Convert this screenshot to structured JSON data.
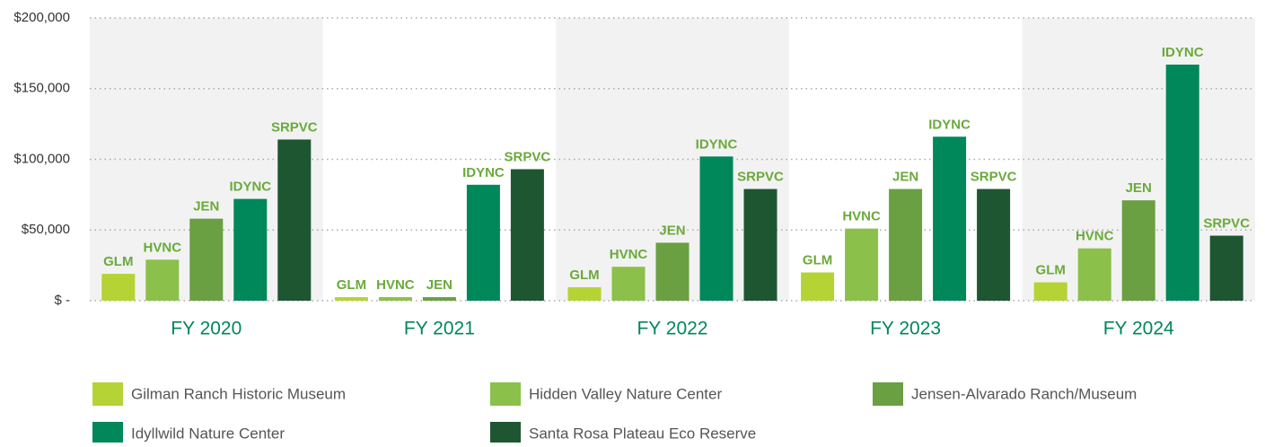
{
  "chart_data": {
    "type": "bar",
    "categories": [
      "FY 2020",
      "FY 2021",
      "FY 2022",
      "FY 2023",
      "FY 2024"
    ],
    "series": [
      {
        "name": "Gilman Ranch Historic Museum",
        "label": "GLM",
        "color": "#b5d334",
        "values": [
          19000,
          2500,
          9500,
          20000,
          13000
        ]
      },
      {
        "name": "Hidden Valley Nature Center",
        "label": "HVNC",
        "color": "#8bc04a",
        "values": [
          29000,
          2500,
          24000,
          51000,
          37000
        ]
      },
      {
        "name": "Jensen-Alvarado Ranch/Museum",
        "label": "JEN",
        "color": "#6a9f42",
        "values": [
          58000,
          2500,
          41000,
          79000,
          71000
        ]
      },
      {
        "name": "Idyllwild Nature Center",
        "label": "IDYNC",
        "color": "#00875a",
        "values": [
          72000,
          82000,
          102000,
          116000,
          167000
        ]
      },
      {
        "name": "Santa Rosa Plateau Eco Reserve",
        "label": "SRPVC",
        "color": "#1e5631",
        "values": [
          114000,
          93000,
          79000,
          79000,
          46000
        ]
      }
    ],
    "ylim": [
      0,
      200000
    ],
    "yticks": [
      {
        "value": 0,
        "label": "$ -"
      },
      {
        "value": 50000,
        "label": "$50,000"
      },
      {
        "value": 100000,
        "label": "$100,000"
      },
      {
        "value": 150000,
        "label": "$150,000"
      },
      {
        "value": 200000,
        "label": "$200,000"
      }
    ],
    "grid": true,
    "legend": "bottom"
  }
}
